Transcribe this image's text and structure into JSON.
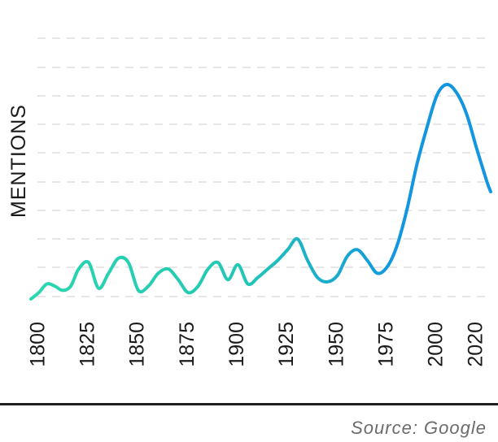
{
  "chart_data": {
    "type": "line",
    "title": "",
    "xlabel": "",
    "ylabel": "MENTIONS",
    "x_ticks": [
      "1800",
      "1825",
      "1850",
      "1875",
      "1900",
      "1925",
      "1950",
      "1975",
      "2000",
      "2020"
    ],
    "xlim": [
      1796,
      2027
    ],
    "ylim": [
      0,
      100
    ],
    "grid": true,
    "gradient_colors": [
      "#2ad6b0",
      "#1296e0"
    ],
    "series": [
      {
        "x": [
          1796,
          1800,
          1804,
          1808,
          1812,
          1816,
          1820,
          1825,
          1830,
          1835,
          1840,
          1845,
          1850,
          1855,
          1860,
          1865,
          1870,
          1875,
          1880,
          1885,
          1890,
          1895,
          1900,
          1905,
          1910,
          1915,
          1920,
          1925,
          1930,
          1935,
          1940,
          1945,
          1950,
          1955,
          1960,
          1965,
          1970,
          1975,
          1980,
          1985,
          1990,
          1995,
          2000,
          2005,
          2010,
          2015,
          2020,
          2025,
          2027
        ],
        "y": [
          0,
          3,
          7,
          6,
          4,
          6,
          14,
          17,
          5,
          12,
          19,
          17,
          4,
          6,
          12,
          14,
          9,
          3,
          6,
          14,
          17,
          9,
          16,
          7,
          10,
          14,
          18,
          23,
          28,
          18,
          10,
          8,
          11,
          20,
          23,
          18,
          12,
          15,
          25,
          42,
          63,
          80,
          95,
          100,
          96,
          86,
          70,
          55,
          50
        ]
      }
    ]
  },
  "source": "Source: Google"
}
